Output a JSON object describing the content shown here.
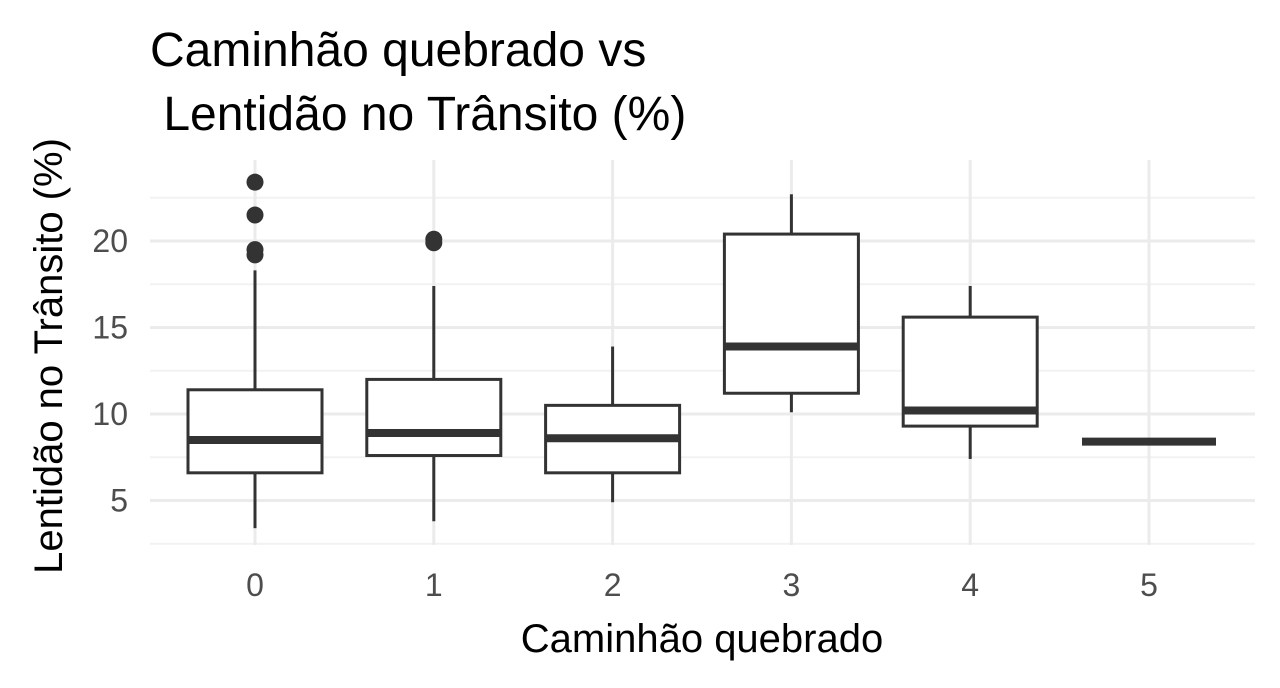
{
  "chart_data": {
    "type": "boxplot",
    "title_lines": [
      "Caminhão quebrado vs",
      " Lentidão no Trânsito (%)"
    ],
    "xlabel": "Caminhão quebrado",
    "ylabel": "Lentidão no Trânsito (%)",
    "categories": [
      "0",
      "1",
      "2",
      "3",
      "4",
      "5"
    ],
    "y_ticks": [
      5,
      10,
      15,
      20
    ],
    "ylim": [
      2.5,
      25
    ],
    "grid": true,
    "boxes": [
      {
        "category": "0",
        "min": 3.4,
        "q1": 6.6,
        "median": 8.5,
        "q3": 11.4,
        "max": 18.3,
        "outliers": [
          19.2,
          19.5,
          21.5,
          23.4
        ]
      },
      {
        "category": "1",
        "min": 3.8,
        "q1": 7.6,
        "median": 8.9,
        "q3": 12.0,
        "max": 17.4,
        "outliers": [
          19.9,
          20.1
        ]
      },
      {
        "category": "2",
        "min": 4.9,
        "q1": 6.6,
        "median": 8.6,
        "q3": 10.5,
        "max": 13.9,
        "outliers": []
      },
      {
        "category": "3",
        "min": 10.1,
        "q1": 11.2,
        "median": 13.9,
        "q3": 20.4,
        "max": 22.7,
        "outliers": []
      },
      {
        "category": "4",
        "min": 7.4,
        "q1": 9.3,
        "median": 10.2,
        "q3": 15.6,
        "max": 17.4,
        "outliers": []
      },
      {
        "category": "5",
        "min": 8.4,
        "q1": 8.4,
        "median": 8.4,
        "q3": 8.4,
        "max": 8.4,
        "outliers": []
      }
    ]
  }
}
